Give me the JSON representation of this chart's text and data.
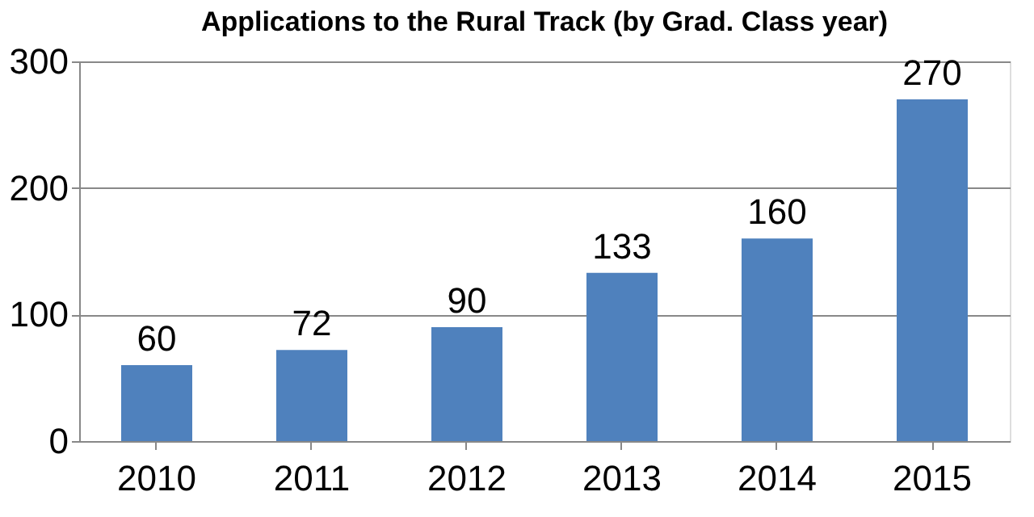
{
  "chart_data": {
    "type": "bar",
    "title": "Applications to the Rural Track (by Grad. Class year)",
    "categories": [
      "2010",
      "2011",
      "2012",
      "2013",
      "2014",
      "2015"
    ],
    "values": [
      60,
      72,
      90,
      133,
      160,
      270
    ],
    "color": "#4f81bd",
    "ylim": [
      0,
      300
    ],
    "yticks": [
      0,
      100,
      200,
      300
    ],
    "grid": "y",
    "data_labels": true
  }
}
